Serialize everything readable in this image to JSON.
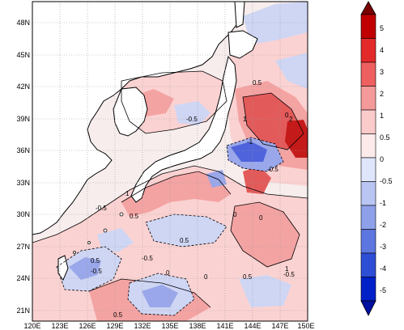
{
  "map": {
    "lat_labels": [
      "48N",
      "45N",
      "42N",
      "39N",
      "36N",
      "33N",
      "30N",
      "27N",
      "24N",
      "21N"
    ],
    "lon_labels": [
      "120E",
      "123E",
      "126E",
      "129E",
      "132E",
      "135E",
      "138E",
      "141E",
      "144E",
      "147E",
      "150E"
    ],
    "contour_labels": [
      "0.5",
      "0",
      "-0.5",
      "1",
      "2",
      "-1",
      "-0.5",
      "0.5",
      "0",
      "-0.5",
      "1",
      "0.5",
      "0",
      "-0.5",
      "0.5",
      "0",
      "0.5",
      "1",
      "-0.5",
      "0.5",
      "0",
      "-0.5"
    ],
    "colors": {
      "ocean_neutral": "#f7f3f3",
      "land": "#ffffff",
      "pos_1": "#fbd2d2",
      "pos_2": "#f4a3a3",
      "pos_3": "#e35a5a",
      "pos_4": "#c51a1a",
      "neg_1": "#cfd6f4",
      "neg_2": "#9aa7ea",
      "neg_3": "#4f63dc"
    }
  },
  "colorbar": {
    "labels": [
      "5",
      "4",
      "3",
      "2",
      "1",
      "0.5",
      "0",
      "-0.5",
      "-1",
      "-2",
      "-3",
      "-4",
      "-5"
    ],
    "colors": [
      "#7a0000",
      "#c00000",
      "#e32a2a",
      "#ee5f5f",
      "#f59a9a",
      "#fbcaca",
      "#fdeaea",
      "#dfe6fb",
      "#b9c6f4",
      "#8ea0ea",
      "#5e77e0",
      "#2e4ed6",
      "#0020c8",
      "#0010a0"
    ]
  }
}
